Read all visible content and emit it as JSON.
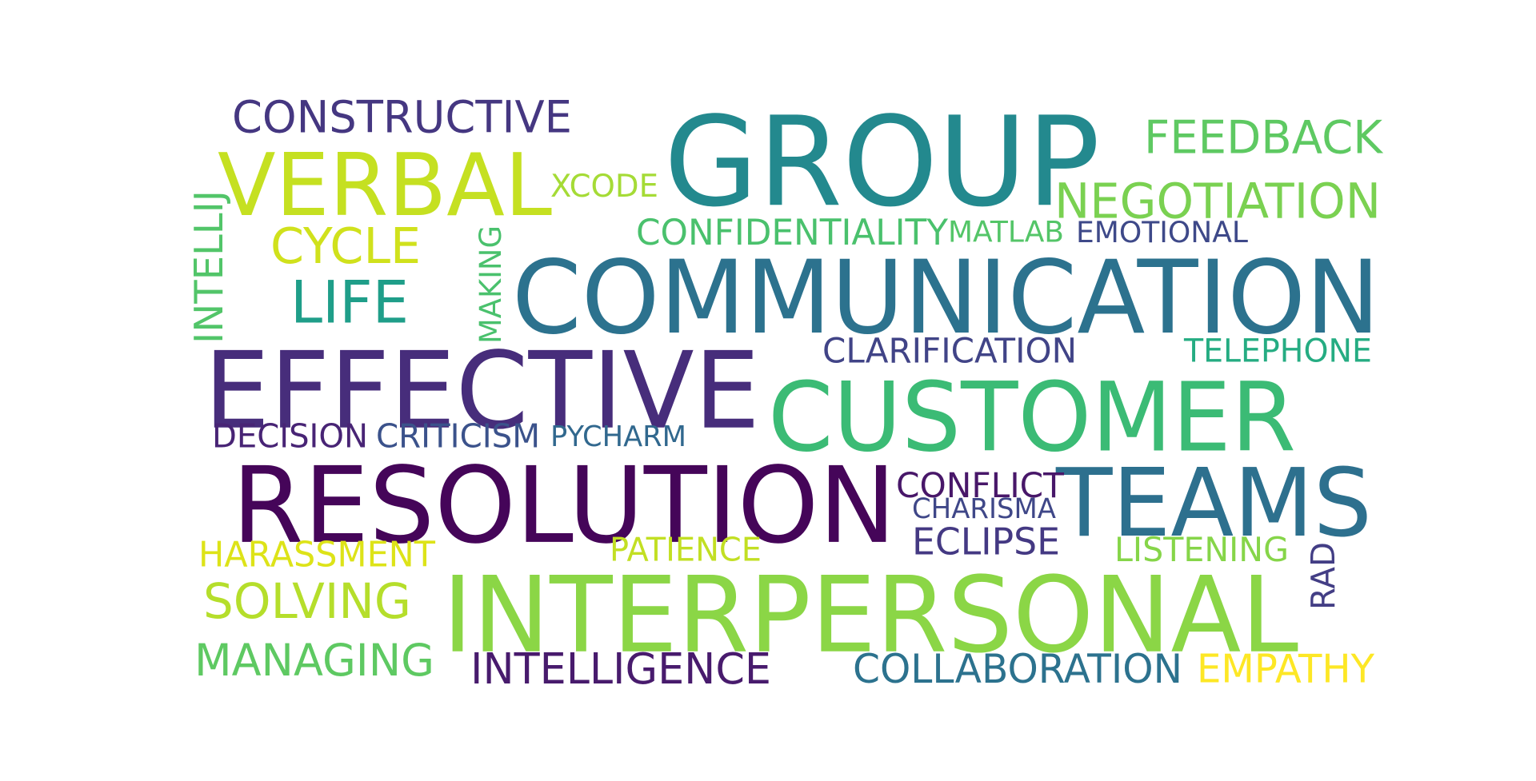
{
  "wordcloud": {
    "words": [
      {
        "text": "GROUP",
        "color": "#23898e",
        "weight": 1.0
      },
      {
        "text": "COMMUNICATION",
        "color": "#2c728e",
        "weight": 0.9
      },
      {
        "text": "CUSTOMER",
        "color": "#3bbb75",
        "weight": 0.85
      },
      {
        "text": "RESOLUTION",
        "color": "#450559",
        "weight": 0.85
      },
      {
        "text": "TEAMS",
        "color": "#2d708e",
        "weight": 0.8
      },
      {
        "text": "INTERPERSONAL",
        "color": "#8bd646",
        "weight": 0.8
      },
      {
        "text": "EFFECTIVE",
        "color": "#472d7b",
        "weight": 0.78
      },
      {
        "text": "VERBAL",
        "color": "#c5e021",
        "weight": 0.72
      },
      {
        "text": "FEEDBACK",
        "color": "#5ec962",
        "weight": 0.4
      },
      {
        "text": "NEGOTIATION",
        "color": "#7ad151",
        "weight": 0.4
      },
      {
        "text": "CONSTRUCTIVE",
        "color": "#453781",
        "weight": 0.38
      },
      {
        "text": "MANAGING",
        "color": "#5ec962",
        "weight": 0.38
      },
      {
        "text": "COLLABORATION",
        "color": "#2c728e",
        "weight": 0.36
      },
      {
        "text": "INTELLIGENCE",
        "color": "#481b6d",
        "weight": 0.36
      },
      {
        "text": "EMPATHY",
        "color": "#fde725",
        "weight": 0.36
      },
      {
        "text": "SOLVING",
        "color": "#b5de2b",
        "weight": 0.36
      },
      {
        "text": "CYCLE",
        "color": "#d0e11c",
        "weight": 0.34
      },
      {
        "text": "LIFE",
        "color": "#1f9e89",
        "weight": 0.34
      },
      {
        "text": "HARASSMENT",
        "color": "#dde318",
        "weight": 0.3
      },
      {
        "text": "CONFLICT",
        "color": "#481769",
        "weight": 0.3
      },
      {
        "text": "ECLIPSE",
        "color": "#443983",
        "weight": 0.28
      },
      {
        "text": "CLARIFICATION",
        "color": "#414487",
        "weight": 0.26
      },
      {
        "text": "TELEPHONE",
        "color": "#25ac82",
        "weight": 0.26
      },
      {
        "text": "CONFIDENTIALITY",
        "color": "#4ac16d",
        "weight": 0.26
      },
      {
        "text": "EMOTIONAL",
        "color": "#3e4989",
        "weight": 0.26
      },
      {
        "text": "XCODE",
        "color": "#a5db36",
        "weight": 0.26
      },
      {
        "text": "DECISION",
        "color": "#482475",
        "weight": 0.26
      },
      {
        "text": "PYCHARM",
        "color": "#31688e",
        "weight": 0.26
      },
      {
        "text": "CRITICISM",
        "color": "#3b528b",
        "weight": 0.24
      },
      {
        "text": "MAKING",
        "color": "#4ac16d",
        "weight": 0.26
      },
      {
        "text": "INTELLIJ",
        "color": "#52c569",
        "weight": 0.26
      },
      {
        "text": "MATLAB",
        "color": "#54c568",
        "weight": 0.24
      },
      {
        "text": "CHARISMA",
        "color": "#3f4788",
        "weight": 0.24
      },
      {
        "text": "PATIENCE",
        "color": "#c2df23",
        "weight": 0.24
      },
      {
        "text": "LISTENING",
        "color": "#86d549",
        "weight": 0.24
      },
      {
        "text": "RAD",
        "color": "#433e85",
        "weight": 0.26
      }
    ]
  }
}
